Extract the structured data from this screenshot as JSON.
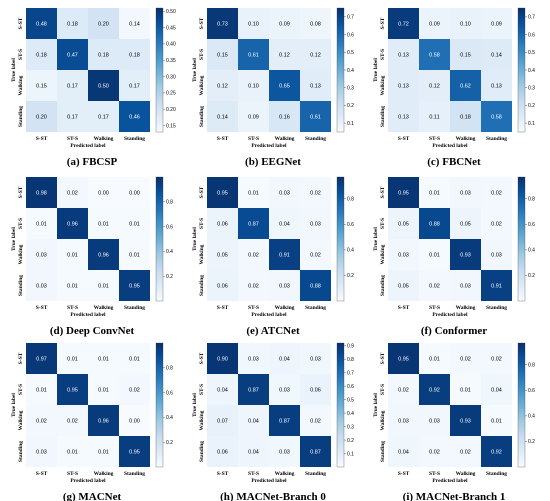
{
  "chart_data": [
    {
      "type": "heatmap",
      "caption": "(a) FBCSP",
      "xlabel": "Predicted label",
      "ylabel": "True label",
      "categories": [
        "S-ST",
        "ST-S",
        "Walking",
        "Standing"
      ],
      "matrix": [
        [
          0.48,
          0.18,
          0.2,
          0.14
        ],
        [
          0.18,
          0.47,
          0.18,
          0.18
        ],
        [
          0.15,
          0.17,
          0.5,
          0.17
        ],
        [
          0.2,
          0.17,
          0.17,
          0.46
        ]
      ],
      "matrix_labels": [
        [
          "0.48",
          "0.18",
          "0.20",
          "0.14"
        ],
        [
          "0.18",
          "0.47",
          "0.18",
          "0.18"
        ],
        [
          "0.15",
          "0.17",
          "0.50",
          "0.17"
        ],
        [
          "0.20",
          "0.17",
          "0.17",
          "0.46"
        ]
      ],
      "colorbar_range": [
        0.13,
        0.51
      ],
      "colorbar_ticks": [
        "0.50",
        "0.45",
        "0.40",
        "0.35",
        "0.30",
        "0.25",
        "0.20",
        "0.15"
      ]
    },
    {
      "type": "heatmap",
      "caption": "(b) EEGNet",
      "xlabel": "Predicted label",
      "ylabel": "True label",
      "categories": [
        "S-ST",
        "ST-S",
        "Walking",
        "Standing"
      ],
      "matrix": [
        [
          0.73,
          0.1,
          0.09,
          0.08
        ],
        [
          0.15,
          0.61,
          0.12,
          0.12
        ],
        [
          0.12,
          0.1,
          0.65,
          0.13
        ],
        [
          0.14,
          0.09,
          0.16,
          0.61
        ]
      ],
      "matrix_labels": [
        [
          "0.73",
          "0.10",
          "0.09",
          "0.08"
        ],
        [
          "0.15",
          "0.61",
          "0.12",
          "0.12"
        ],
        [
          "0.12",
          "0.10",
          "0.65",
          "0.13"
        ],
        [
          "0.14",
          "0.09",
          "0.16",
          "0.61"
        ]
      ],
      "colorbar_range": [
        0.05,
        0.75
      ],
      "colorbar_ticks": [
        "0.7",
        "0.6",
        "0.5",
        "0.4",
        "0.3",
        "0.2",
        "0.1"
      ]
    },
    {
      "type": "heatmap",
      "caption": "(c) FBCNet",
      "xlabel": "Predicted label",
      "ylabel": "True label",
      "categories": [
        "S-ST",
        "ST-S",
        "Walking",
        "Standing"
      ],
      "matrix": [
        [
          0.72,
          0.09,
          0.1,
          0.09
        ],
        [
          0.13,
          0.58,
          0.15,
          0.14
        ],
        [
          0.13,
          0.12,
          0.62,
          0.13
        ],
        [
          0.13,
          0.11,
          0.18,
          0.58
        ]
      ],
      "matrix_labels": [
        [
          "0.72",
          "0.09",
          "0.10",
          "0.09"
        ],
        [
          "0.13",
          "0.58",
          "0.15",
          "0.14"
        ],
        [
          "0.13",
          "0.12",
          "0.62",
          "0.13"
        ],
        [
          "0.13",
          "0.11",
          "0.18",
          "0.58"
        ]
      ],
      "colorbar_range": [
        0.05,
        0.75
      ],
      "colorbar_ticks": [
        "0.7",
        "0.6",
        "0.5",
        "0.4",
        "0.3",
        "0.2",
        "0.1"
      ]
    },
    {
      "type": "heatmap",
      "caption": "(d) Deep ConvNet",
      "xlabel": "Predicted label",
      "ylabel": "True label",
      "categories": [
        "S-ST",
        "ST-S",
        "Walking",
        "Standing"
      ],
      "matrix": [
        [
          0.98,
          0.02,
          0.0,
          0.0
        ],
        [
          0.01,
          0.96,
          0.01,
          0.01
        ],
        [
          0.03,
          0.01,
          0.96,
          0.01
        ],
        [
          0.03,
          0.01,
          0.01,
          0.95
        ]
      ],
      "matrix_labels": [
        [
          "0.98",
          "0.02",
          "0.00",
          "0.00"
        ],
        [
          "0.01",
          "0.96",
          "0.01",
          "0.01"
        ],
        [
          "0.03",
          "0.01",
          "0.96",
          "0.01"
        ],
        [
          "0.03",
          "0.01",
          "0.01",
          "0.95"
        ]
      ],
      "colorbar_range": [
        0.0,
        1.0
      ],
      "colorbar_ticks": [
        "0.8",
        "0.6",
        "0.4",
        "0.2"
      ]
    },
    {
      "type": "heatmap",
      "caption": "(e) ATCNet",
      "xlabel": "Predicted label",
      "ylabel": "True label",
      "categories": [
        "S-ST",
        "ST-S",
        "Walking",
        "Standing"
      ],
      "matrix": [
        [
          0.95,
          0.01,
          0.03,
          0.02
        ],
        [
          0.06,
          0.87,
          0.04,
          0.03
        ],
        [
          0.05,
          0.02,
          0.91,
          0.02
        ],
        [
          0.06,
          0.02,
          0.03,
          0.88
        ]
      ],
      "matrix_labels": [
        [
          "0.95",
          "0.01",
          "0.03",
          "0.02"
        ],
        [
          "0.06",
          "0.87",
          "0.04",
          "0.03"
        ],
        [
          "0.05",
          "0.02",
          "0.91",
          "0.02"
        ],
        [
          "0.06",
          "0.02",
          "0.03",
          "0.88"
        ]
      ],
      "colorbar_range": [
        0.0,
        0.97
      ],
      "colorbar_ticks": [
        "0.8",
        "0.6",
        "0.4",
        "0.2"
      ]
    },
    {
      "type": "heatmap",
      "caption": "(f) Conformer",
      "xlabel": "Predicted label",
      "ylabel": "True label",
      "categories": [
        "S-ST",
        "ST-S",
        "Walking",
        "Standing"
      ],
      "matrix": [
        [
          0.95,
          0.01,
          0.03,
          0.02
        ],
        [
          0.05,
          0.88,
          0.05,
          0.02
        ],
        [
          0.03,
          0.01,
          0.93,
          0.03
        ],
        [
          0.05,
          0.02,
          0.03,
          0.91
        ]
      ],
      "matrix_labels": [
        [
          "0.95",
          "0.01",
          "0.03",
          "0.02"
        ],
        [
          "0.05",
          "0.88",
          "0.05",
          "0.02"
        ],
        [
          "0.03",
          "0.01",
          "0.93",
          "0.03"
        ],
        [
          "0.05",
          "0.02",
          "0.03",
          "0.91"
        ]
      ],
      "colorbar_range": [
        0.0,
        0.97
      ],
      "colorbar_ticks": [
        "0.8",
        "0.6",
        "0.4",
        "0.2"
      ]
    },
    {
      "type": "heatmap",
      "caption": "(g) MACNet",
      "xlabel": "Predicted label",
      "ylabel": "True label",
      "categories": [
        "S-ST",
        "ST-S",
        "Walking",
        "Standing"
      ],
      "matrix": [
        [
          0.97,
          0.01,
          0.01,
          0.01
        ],
        [
          0.01,
          0.95,
          0.01,
          0.02
        ],
        [
          0.02,
          0.02,
          0.96,
          0.0
        ],
        [
          0.03,
          0.01,
          0.01,
          0.95
        ]
      ],
      "matrix_labels": [
        [
          "0.97",
          "0.01",
          "0.01",
          "0.01"
        ],
        [
          "0.01",
          "0.95",
          "0.01",
          "0.02"
        ],
        [
          "0.02",
          "0.02",
          "0.96",
          "0.00"
        ],
        [
          "0.03",
          "0.01",
          "0.01",
          "0.95"
        ]
      ],
      "colorbar_range": [
        0.0,
        1.0
      ],
      "colorbar_ticks": [
        "0.8",
        "0.6",
        "0.4",
        "0.2"
      ]
    },
    {
      "type": "heatmap",
      "caption": "(h) MACNet-Branch 0",
      "xlabel": "Predicted label",
      "ylabel": "True label",
      "categories": [
        "S-ST",
        "ST-S",
        "Walking",
        "Standing"
      ],
      "matrix": [
        [
          0.9,
          0.03,
          0.04,
          0.03
        ],
        [
          0.04,
          0.87,
          0.03,
          0.06
        ],
        [
          0.07,
          0.04,
          0.87,
          0.02
        ],
        [
          0.06,
          0.04,
          0.03,
          0.87
        ]
      ],
      "matrix_labels": [
        [
          "0.90",
          "0.03",
          "0.04",
          "0.03"
        ],
        [
          "0.04",
          "0.87",
          "0.03",
          "0.06"
        ],
        [
          "0.07",
          "0.04",
          "0.87",
          "0.02"
        ],
        [
          "0.06",
          "0.04",
          "0.03",
          "0.87"
        ]
      ],
      "colorbar_range": [
        0.0,
        0.92
      ],
      "colorbar_ticks": [
        "0.9",
        "0.8",
        "0.7",
        "0.6",
        "0.5",
        "0.4",
        "0.3",
        "0.2",
        "0.1"
      ]
    },
    {
      "type": "heatmap",
      "caption": "(i) MACNet-Branch 1",
      "xlabel": "Predicted label",
      "ylabel": "True label",
      "categories": [
        "S-ST",
        "ST-S",
        "Walking",
        "Standing"
      ],
      "matrix": [
        [
          0.95,
          0.01,
          0.02,
          0.02
        ],
        [
          0.02,
          0.92,
          0.01,
          0.04
        ],
        [
          0.03,
          0.03,
          0.93,
          0.01
        ],
        [
          0.04,
          0.02,
          0.02,
          0.92
        ]
      ],
      "matrix_labels": [
        [
          "0.95",
          "0.01",
          "0.02",
          "0.02"
        ],
        [
          "0.02",
          "0.92",
          "0.01",
          "0.04"
        ],
        [
          "0.03",
          "0.03",
          "0.93",
          "0.01"
        ],
        [
          "0.04",
          "0.02",
          "0.02",
          "0.92"
        ]
      ],
      "colorbar_range": [
        0.0,
        0.97
      ],
      "colorbar_ticks": [
        "0.8",
        "0.6",
        "0.4",
        "0.2"
      ]
    }
  ]
}
